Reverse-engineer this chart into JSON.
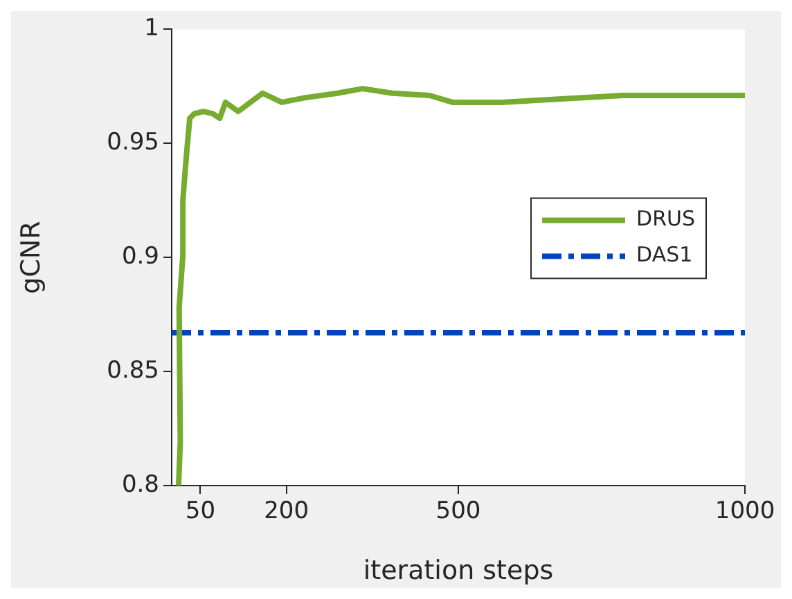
{
  "chart_data": {
    "type": "line",
    "xlabel": "iteration steps",
    "ylabel": "gCNR",
    "xlim": [
      0,
      1000
    ],
    "xticks": [
      50,
      200,
      500,
      1000
    ],
    "ylim": [
      0.8,
      1
    ],
    "yticks": [
      0.8,
      0.85,
      0.9,
      0.95,
      1
    ],
    "grid": false,
    "legend": "right",
    "marker": "none",
    "series": [
      {
        "name": "DRUS",
        "color": "#77ac30",
        "line_style": "solid",
        "x": [
          12,
          15,
          13,
          19.5,
          19.5,
          23.5,
          27.5,
          31.5,
          39.5,
          55.6,
          71.7,
          83.7,
          94,
          116,
          158.6,
          192,
          232,
          289,
          333,
          385,
          450,
          490,
          575,
          787,
          1000
        ],
        "values": [
          0.8,
          0.819,
          0.878,
          0.901,
          0.925,
          0.938,
          0.95,
          0.961,
          0.963,
          0.964,
          0.963,
          0.961,
          0.968,
          0.964,
          0.972,
          0.968,
          0.97,
          0.972,
          0.974,
          0.972,
          0.971,
          0.968,
          0.968,
          0.971,
          0.971
        ]
      },
      {
        "name": "DAS1",
        "color": "#0044bb",
        "line_style": "dashdot",
        "x": [
          0,
          1000
        ],
        "values": [
          0.867,
          0.867
        ]
      }
    ]
  }
}
